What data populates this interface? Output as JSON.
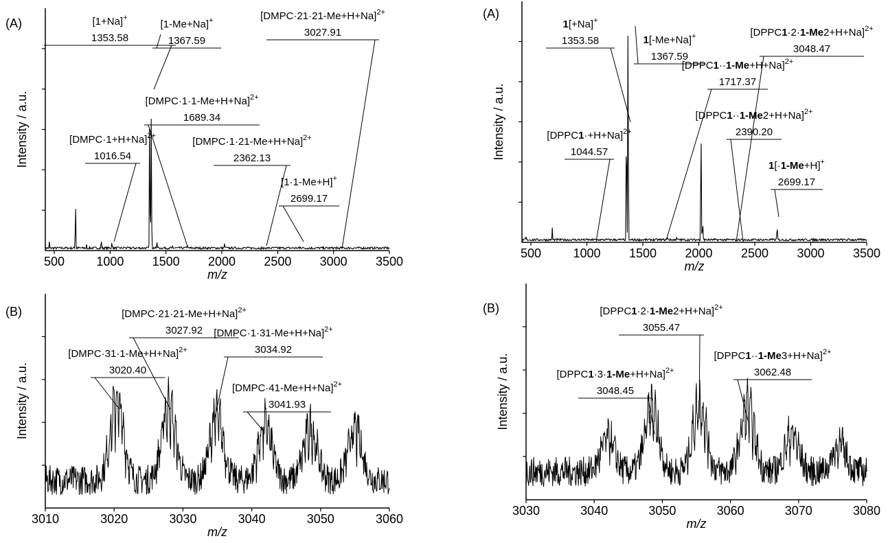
{
  "chart_data": [
    {
      "type": "line",
      "panel_label": "(A)",
      "xlabel": "m/z",
      "ylabel": "Intensity / a.u.",
      "xlim": [
        420,
        3500
      ],
      "ylim": [
        0,
        100
      ],
      "x_ticks": [
        500,
        1000,
        1500,
        2000,
        2500,
        3000,
        3500
      ],
      "grid": false,
      "peaks": [
        {
          "x": 455,
          "y": 5
        },
        {
          "x": 690,
          "y": 30
        },
        {
          "x": 790,
          "y": 3
        },
        {
          "x": 920,
          "y": 6
        },
        {
          "x": 1016.54,
          "y": 5
        },
        {
          "x": 1130,
          "y": 3
        },
        {
          "x": 1353.58,
          "y": 65
        },
        {
          "x": 1367.59,
          "y": 100
        },
        {
          "x": 1420,
          "y": 6
        },
        {
          "x": 1560,
          "y": 3
        },
        {
          "x": 1689.34,
          "y": 3
        },
        {
          "x": 2025,
          "y": 5
        },
        {
          "x": 2362.13,
          "y": 1
        },
        {
          "x": 2699.17,
          "y": 2
        },
        {
          "x": 3027.91,
          "y": 1
        }
      ],
      "annotations": [
        {
          "label": "[1+Na]",
          "charge": "+",
          "value": "1353.58",
          "peak_x": 1353.58
        },
        {
          "label": "[1-Me+Na]",
          "charge": "+",
          "value": "1367.59",
          "peak_x": 1367.59
        },
        {
          "label": "[DMPC·21·21-Me+H+Na]",
          "charge": "2+",
          "value": "3027.91",
          "peak_x": 3027.91
        },
        {
          "label": "[DMPC·1·1-Me+H+Na]",
          "charge": "2+",
          "value": "1689.34",
          "peak_x": 1689.34
        },
        {
          "label": "[DMPC·1+H+Na]",
          "charge": "2+",
          "value": "1016.54",
          "peak_x": 1016.54
        },
        {
          "label": "[DMPC·1·21-Me+H+Na]",
          "charge": "2+",
          "value": "2362.13",
          "peak_x": 2362.13
        },
        {
          "label": "[1·1-Me+H]",
          "charge": "+",
          "value": "2699.17",
          "peak_x": 2699.17
        }
      ]
    },
    {
      "type": "line",
      "panel_label": "(B)",
      "xlabel": "m/z",
      "ylabel": "Intensity / a.u.",
      "xlim": [
        3010,
        3060
      ],
      "ylim": [
        0,
        100
      ],
      "x_ticks": [
        3010,
        3020,
        3030,
        3040,
        3050,
        3060
      ],
      "grid": false,
      "peaks": [
        {
          "x": 3020.4,
          "y": 46
        },
        {
          "x": 3027.92,
          "y": 44
        },
        {
          "x": 3034.92,
          "y": 38
        },
        {
          "x": 3041.93,
          "y": 33
        },
        {
          "x": 3048.5,
          "y": 30
        },
        {
          "x": 3055,
          "y": 30
        }
      ],
      "annotations": [
        {
          "label": "[DMPC·21·21-Me+H+Na]",
          "charge": "2+",
          "value": "3027.92",
          "peak_x": 3027.92
        },
        {
          "label": "[DMPC·31·1-Me+H+Na]",
          "charge": "2+",
          "value": "3020.40",
          "peak_x": 3020.4
        },
        {
          "label": "[DMPC·1·31-Me+H+Na]",
          "charge": "2+",
          "value": "3034.92",
          "peak_x": 3034.92
        },
        {
          "label": "[DMPC·41-Me+H+Na]",
          "charge": "2+",
          "value": "3041.93",
          "peak_x": 3041.93
        }
      ]
    },
    {
      "type": "line",
      "panel_label": "(A)",
      "xlabel": "m/z",
      "ylabel": "Intensity / a.u.",
      "xlim": [
        420,
        3500
      ],
      "ylim": [
        0,
        100
      ],
      "x_ticks": [
        500,
        1000,
        1500,
        2000,
        2500,
        3000,
        3500
      ],
      "grid": false,
      "peaks": [
        {
          "x": 455,
          "y": 3
        },
        {
          "x": 690,
          "y": 8
        },
        {
          "x": 1044.57,
          "y": 1
        },
        {
          "x": 1353.58,
          "y": 57
        },
        {
          "x": 1367.59,
          "y": 100
        },
        {
          "x": 1717.37,
          "y": 3
        },
        {
          "x": 1800,
          "y": 3
        },
        {
          "x": 2020,
          "y": 70
        },
        {
          "x": 2035,
          "y": 12
        },
        {
          "x": 2390.2,
          "y": 1
        },
        {
          "x": 2699.17,
          "y": 9
        },
        {
          "x": 3048.47,
          "y": 1
        }
      ],
      "annotations": [
        {
          "label": "[1+Na]",
          "charge": "+",
          "value": "1353.58",
          "peak_x": 1353.58
        },
        {
          "label": "[1-Me+Na]",
          "charge": "+",
          "value": "1367.59",
          "peak_x": 1367.59
        },
        {
          "label": "[DPPC·21·21-Me+H+Na]",
          "charge": "2+",
          "value": "3048.47",
          "peak_x": 3048.47
        },
        {
          "label": "[DPPC·1·1-Me+H+Na]",
          "charge": "2+",
          "value": "1717.37",
          "peak_x": 1717.37
        },
        {
          "label": "[DPPC·1+H+Na]",
          "charge": "2+",
          "value": "1044.57",
          "peak_x": 1044.57
        },
        {
          "label": "[DPPC·1·21-Me+H+Na]",
          "charge": "2+",
          "value": "2390.20",
          "peak_x": 2390.2
        },
        {
          "label": "[1·1-Me+H]",
          "charge": "+",
          "value": "2699.17",
          "peak_x": 2699.17
        }
      ]
    },
    {
      "type": "line",
      "panel_label": "(B)",
      "xlabel": "m/z",
      "ylabel": "Intensity / a.u.",
      "xlim": [
        3030,
        3080
      ],
      "ylim": [
        0,
        100
      ],
      "x_ticks": [
        3030,
        3040,
        3050,
        3060,
        3070,
        3080
      ],
      "grid": false,
      "peaks": [
        {
          "x": 3042,
          "y": 20
        },
        {
          "x": 3048.45,
          "y": 37
        },
        {
          "x": 3055.47,
          "y": 40
        },
        {
          "x": 3062.48,
          "y": 38
        },
        {
          "x": 3069,
          "y": 22
        },
        {
          "x": 3076,
          "y": 16
        }
      ],
      "annotations": [
        {
          "label": "[DPPC·21·21-Me+H+Na]",
          "charge": "2+",
          "value": "3055.47",
          "peak_x": 3055.47
        },
        {
          "label": "[DPPC·31·1-Me+H+Na]",
          "charge": "2+",
          "value": "3048.45",
          "peak_x": 3048.45
        },
        {
          "label": "[DPPC·1·31-Me+H+Na]",
          "charge": "2+",
          "value": "3062.48",
          "peak_x": 3062.48
        }
      ]
    }
  ]
}
